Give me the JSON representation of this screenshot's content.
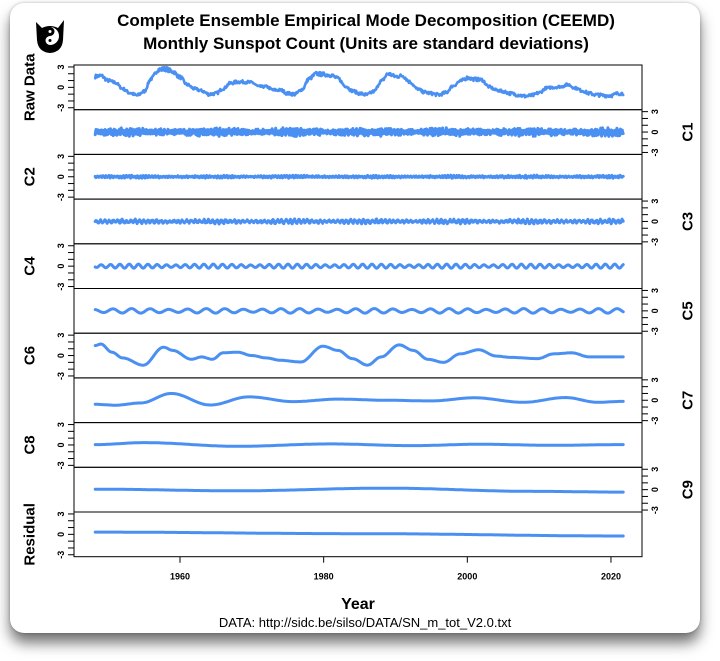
{
  "chart_data": {
    "type": "line",
    "title": [
      "Complete Ensemble Empirical Mode Decomposition (CEEMD)",
      "Monthly Sunspot Count (Units are standard deviations)"
    ],
    "xlabel": "Year",
    "source": "DATA: http://sidc.be/silso/DATA/SN_m_tot_V2.0.txt",
    "xlim": [
      1945,
      2024
    ],
    "xticks": [
      1960,
      1980,
      2000,
      2020
    ],
    "ylim": [
      -3.3,
      3.3
    ],
    "yticks_labeled": [
      -3,
      0,
      3
    ],
    "yticks_minor": [
      -3,
      -2,
      -1,
      0,
      1,
      2,
      3
    ],
    "line_color": "#4a8ff2",
    "series": [
      {
        "name": "Raw Data",
        "axis": "left",
        "x_start": 1948,
        "x_step": 1,
        "noise": 0.3,
        "y": [
          1.6,
          1.7,
          1.0,
          0.7,
          -0.2,
          -0.8,
          -1.2,
          -0.6,
          1.3,
          2.6,
          2.7,
          2.3,
          1.5,
          0.4,
          -0.2,
          -0.5,
          -1.0,
          -0.9,
          -0.2,
          0.6,
          0.8,
          0.8,
          0.7,
          0.1,
          0.1,
          -0.4,
          -0.4,
          -0.9,
          -1.0,
          -0.3,
          1.3,
          2.0,
          1.9,
          1.8,
          1.3,
          0.2,
          -0.5,
          -0.9,
          -1.1,
          -0.6,
          0.9,
          2.0,
          1.6,
          1.7,
          0.8,
          -0.2,
          -0.7,
          -0.9,
          -1.1,
          -0.8,
          0.2,
          0.9,
          1.4,
          1.2,
          1.1,
          0.1,
          -0.4,
          -0.6,
          -0.9,
          -1.1,
          -1.3,
          -1.2,
          -0.8,
          -0.1,
          0.0,
          0.1,
          0.4,
          -0.1,
          -0.5,
          -0.9,
          -1.1,
          -1.2,
          -1.2,
          -0.9
        ]
      },
      {
        "name": "C1",
        "axis": "right",
        "approx_amplitude": 0.35,
        "approx_period_years": 0.25
      },
      {
        "name": "C2",
        "axis": "left",
        "approx_amplitude": 0.12,
        "approx_period_years": 0.4
      },
      {
        "name": "C3",
        "axis": "right",
        "approx_amplitude": 0.2,
        "approx_period_years": 0.6
      },
      {
        "name": "C4",
        "axis": "left",
        "approx_amplitude": 0.25,
        "approx_period_years": 1.3
      },
      {
        "name": "C5",
        "axis": "right",
        "approx_amplitude": 0.28,
        "approx_period_years": 2.6
      },
      {
        "name": "C6",
        "axis": "left",
        "x": [
          1948.2,
          1949,
          1950.5,
          1952,
          1954.9,
          1957.7,
          1959,
          1961.6,
          1963,
          1964.5,
          1966,
          1968,
          1970,
          1972,
          1974,
          1976.8,
          1979.9,
          1982,
          1984,
          1986.1,
          1988,
          1990.5,
          1992.5,
          1994.5,
          1996.7,
          1999,
          2001.6,
          2004,
          2006,
          2009.8,
          2012,
          2014.5,
          2017,
          2021.7
        ],
        "y": [
          1.47,
          1.7,
          0.5,
          -0.35,
          -1.42,
          1.23,
          0.75,
          -0.55,
          -0.2,
          -0.55,
          0.4,
          0.5,
          0.0,
          -0.35,
          -0.7,
          -0.95,
          1.38,
          0.75,
          -0.45,
          -1.42,
          -0.2,
          1.57,
          0.75,
          -0.55,
          -1.0,
          0.25,
          0.85,
          -0.07,
          -0.27,
          -0.45,
          0.25,
          0.4,
          -0.2,
          -0.2
        ]
      },
      {
        "name": "C7",
        "axis": "right",
        "x": [
          1948.2,
          1951,
          1954.5,
          1958.8,
          1964.2,
          1969.6,
          1975.8,
          1982,
          1988.7,
          1994.9,
          2001,
          2007.8,
          2013.7,
          2018.1,
          2021.7
        ],
        "y": [
          -0.6,
          -0.73,
          -0.4,
          1.0,
          -0.7,
          0.5,
          -0.2,
          0.17,
          0.0,
          -0.1,
          0.36,
          -0.3,
          0.4,
          -0.3,
          -0.17
        ]
      },
      {
        "name": "C8",
        "axis": "left",
        "x": [
          1948.2,
          1955,
          1968,
          1981,
          1992.3,
          2001.6,
          2012,
          2021.7
        ],
        "y": [
          0.05,
          0.34,
          -0.2,
          0.15,
          -0.1,
          0.1,
          -0.05,
          0.05
        ]
      },
      {
        "name": "C9",
        "axis": "right",
        "x": [
          1948.2,
          1968,
          1988.7,
          2009,
          2021.7
        ],
        "y": [
          0.07,
          -0.17,
          0.22,
          -0.25,
          -0.36
        ]
      },
      {
        "name": "Residual",
        "axis": "left",
        "x": [
          1948.2,
          1985,
          2021.7
        ],
        "y": [
          0.33,
          0.1,
          -0.24
        ]
      }
    ]
  }
}
